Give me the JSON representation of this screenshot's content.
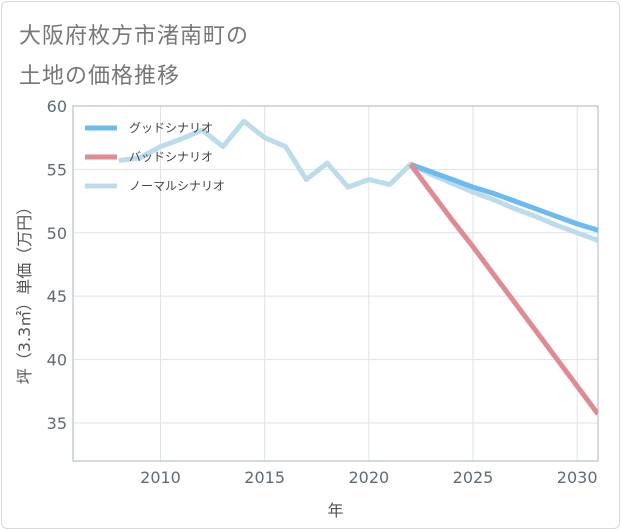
{
  "chart_data": {
    "type": "line",
    "title": "大阪府枚方市渚南町の土地の価格推移",
    "title_lines": [
      "大阪府枚方市渚南町の",
      "土地の価格推移"
    ],
    "xlabel": "年",
    "ylabel": "坪（3.3㎡）単価（万円）",
    "xlim": [
      2005.8,
      2031
    ],
    "ylim": [
      32,
      60
    ],
    "x_ticks": [
      2010,
      2015,
      2020,
      2025,
      2030
    ],
    "y_ticks": [
      35,
      40,
      45,
      50,
      55,
      60
    ],
    "grid": true,
    "legend_position": "top-left",
    "series": [
      {
        "name": "グッドシナリオ",
        "color": "#6bbaf0",
        "x": [
          2022,
          2023,
          2024,
          2025,
          2026,
          2027,
          2028,
          2029,
          2030,
          2031
        ],
        "values": [
          55.4,
          54.8,
          54.2,
          53.6,
          53.1,
          52.5,
          51.9,
          51.3,
          50.7,
          50.2
        ]
      },
      {
        "name": "バッドシナリオ",
        "color": "#e08a92",
        "x": [
          2022,
          2023,
          2024,
          2025,
          2026,
          2027,
          2028,
          2029,
          2030,
          2031
        ],
        "values": [
          55.4,
          53.2,
          51.0,
          48.9,
          46.7,
          44.5,
          42.3,
          40.1,
          37.9,
          35.7
        ]
      },
      {
        "name": "ノーマルシナリオ",
        "color": "#bcdcec",
        "x": [
          2008,
          2009,
          2010,
          2011,
          2012,
          2013,
          2014,
          2015,
          2016,
          2017,
          2018,
          2019,
          2020,
          2021,
          2022,
          2023,
          2024,
          2025,
          2026,
          2027,
          2028,
          2029,
          2030,
          2031
        ],
        "values": [
          55.7,
          55.9,
          56.8,
          57.4,
          58.1,
          56.8,
          58.8,
          57.5,
          56.8,
          54.2,
          55.5,
          53.6,
          54.2,
          53.8,
          55.4,
          54.6,
          53.9,
          53.2,
          52.6,
          51.9,
          51.3,
          50.6,
          50.0,
          49.4
        ]
      }
    ]
  }
}
